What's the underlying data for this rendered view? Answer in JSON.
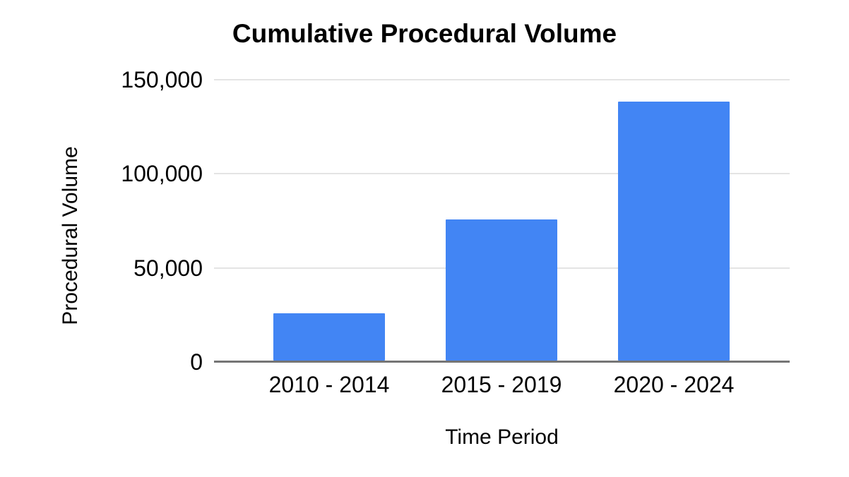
{
  "page": {
    "background": "#ffffff"
  },
  "chart_data": {
    "type": "bar",
    "title": "Cumulative Procedural Volume",
    "xlabel": "Time Period",
    "ylabel": "Procedural Volume",
    "categories": [
      "2010 - 2014",
      "2015 - 2019",
      "2020 - 2024"
    ],
    "values": [
      25000,
      75000,
      137500
    ],
    "ylim": [
      0,
      150000
    ],
    "yticks": [
      {
        "value": 0,
        "label": "0"
      },
      {
        "value": 50000,
        "label": "50,000"
      },
      {
        "value": 100000,
        "label": "100,000"
      },
      {
        "value": 150000,
        "label": "150,000"
      }
    ],
    "grid": true,
    "legend": "none",
    "colors": {
      "bar": "#4285F4",
      "gridline": "#e4e4e4",
      "axis_line": "#757575",
      "text": "#000000",
      "background": "#ffffff"
    }
  }
}
